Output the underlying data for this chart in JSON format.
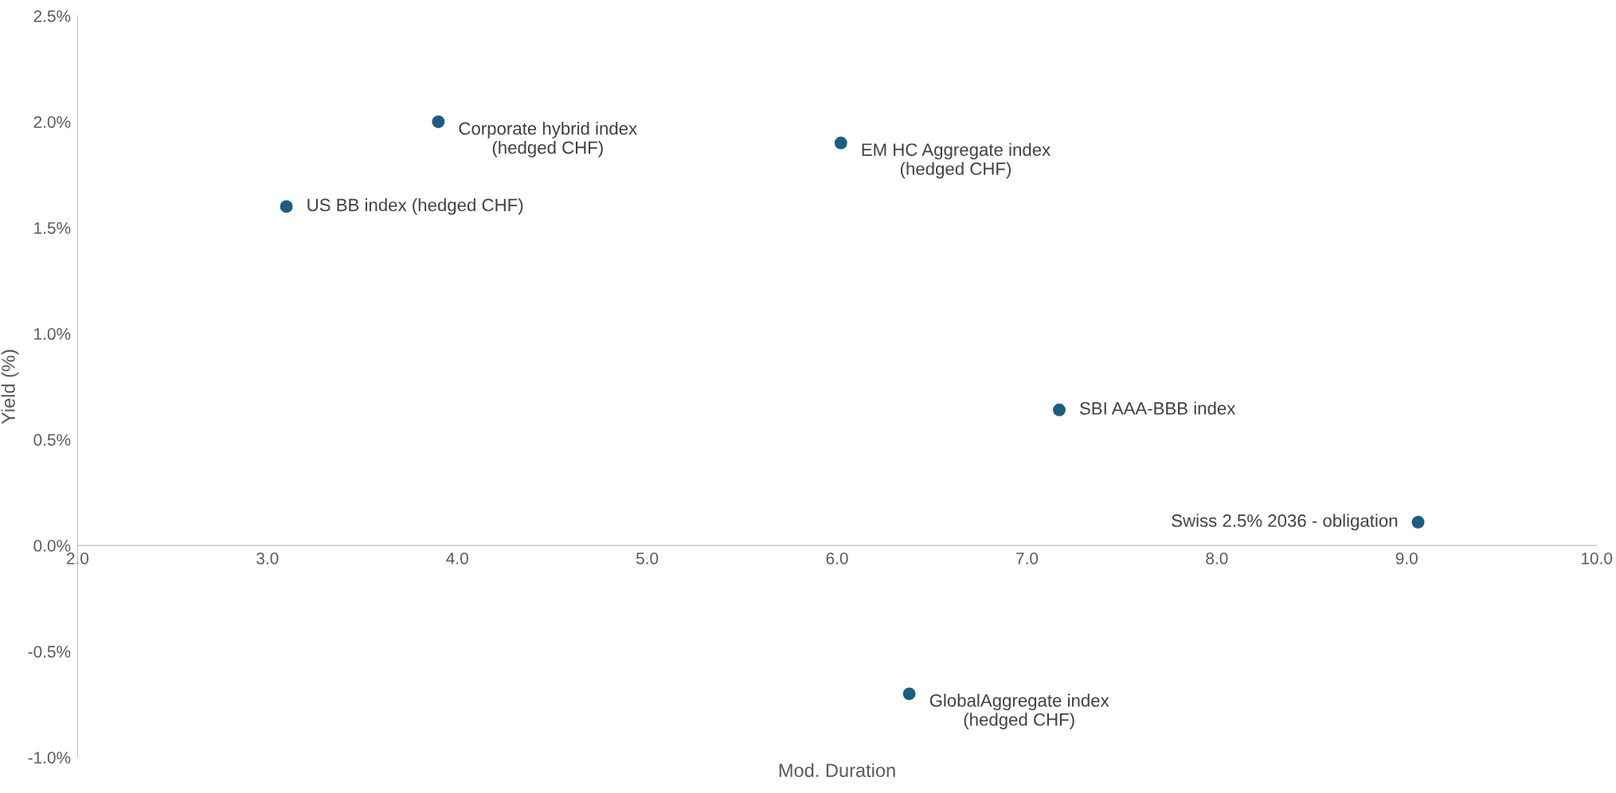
{
  "chart_data": {
    "type": "scatter",
    "xlabel": "Mod. Duration",
    "ylabel": "Yield (%)",
    "x": [
      3.9,
      3.1,
      6.02,
      7.17,
      9.06,
      6.38
    ],
    "series": [
      {
        "color": "#1b5e80",
        "values": [
          2.0,
          1.6,
          1.9,
          0.64,
          0.11,
          -0.7
        ]
      }
    ],
    "annotations": [
      {
        "text": "Corporate hybrid index\n(hedged CHF)",
        "x": 3.9,
        "y": 2.0
      },
      {
        "text": "US BB index (hedged CHF)",
        "x": 3.1,
        "y": 1.6
      },
      {
        "text": "EM HC Aggregate index\n(hedged CHF)",
        "x": 6.02,
        "y": 1.9
      },
      {
        "text": "SBI AAA-BBB index",
        "x": 7.17,
        "y": 0.64
      },
      {
        "text": "Swiss 2.5% 2036 - obligation",
        "x": 9.06,
        "y": 0.11
      },
      {
        "text": "GlobalAggregate index\n(hedged CHF)",
        "x": 6.38,
        "y": -0.7
      }
    ],
    "xlim": [
      2.0,
      10.0
    ],
    "xticks": [
      {
        "value": 2,
        "label": "2.0"
      },
      {
        "value": 3,
        "label": "3.0"
      },
      {
        "value": 4,
        "label": "4.0"
      },
      {
        "value": 5,
        "label": "5.0"
      },
      {
        "value": 6,
        "label": "6.0"
      },
      {
        "value": 7,
        "label": "7.0"
      },
      {
        "value": 8,
        "label": "8.0"
      },
      {
        "value": 9,
        "label": "9.0"
      },
      {
        "value": 10,
        "label": "10.0"
      }
    ],
    "ylim": [
      -1.0,
      2.5
    ],
    "yticks": [
      {
        "value": -1,
        "label": "-1.0%"
      },
      {
        "value": -0.5,
        "label": "-0.5%"
      },
      {
        "value": 0,
        "label": "0.0%"
      },
      {
        "value": 0.5,
        "label": "0.5%"
      },
      {
        "value": 1,
        "label": "1.0%"
      },
      {
        "value": 1.5,
        "label": "1.5%"
      },
      {
        "value": 2,
        "label": "2.0%"
      },
      {
        "value": 2.5,
        "label": "2.5%"
      }
    ],
    "grid": false,
    "marker": "circle"
  }
}
